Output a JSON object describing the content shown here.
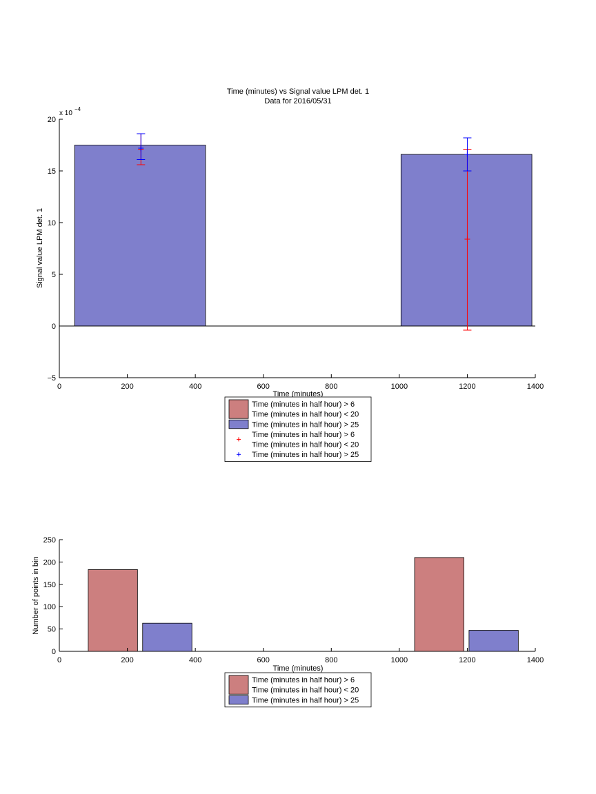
{
  "chart_data": [
    {
      "type": "bar",
      "title": "Time (minutes) vs Signal value LPM det. 1",
      "subtitle": "Data for 2016/05/31",
      "xlabel": "Time (minutes)",
      "ylabel": "Signal value LPM det. 1",
      "y_exponent_base": "x 10",
      "y_exponent_power": "−4",
      "xlim": [
        0,
        1400
      ],
      "ylim": [
        -5,
        20
      ],
      "x_ticks": [
        0,
        200,
        400,
        600,
        800,
        1000,
        1200,
        1400
      ],
      "y_ticks": [
        -5,
        0,
        5,
        10,
        15,
        20
      ],
      "y_tick_labels": [
        "−5",
        "0",
        "5",
        "10",
        "15",
        "20"
      ],
      "grid": false,
      "legend_position": "below",
      "bars": [
        {
          "series": 2,
          "x_start": 45,
          "x_end": 430,
          "value": 17.5
        },
        {
          "series": 2,
          "x_start": 1005,
          "x_end": 1390,
          "value": 16.6
        }
      ],
      "error_bars": [
        {
          "series": 1,
          "x": 240,
          "center": 17.1,
          "low": 15.6,
          "high": 18.6
        },
        {
          "series": 2,
          "x": 240,
          "center": 17.2,
          "low": 16.1,
          "high": 18.6
        },
        {
          "series": 1,
          "x": 1200,
          "center": 8.4,
          "low": -0.4,
          "high": 17.1
        },
        {
          "series": 2,
          "x": 1200,
          "center": 16.6,
          "low": 15.0,
          "high": 18.2
        }
      ],
      "legend": [
        {
          "kind": "patch",
          "series": 1,
          "lines": [
            "Time (minutes in half hour) > 6",
            "Time (minutes in half hour) < 20"
          ]
        },
        {
          "kind": "patch",
          "series": 2,
          "lines": [
            "Time (minutes in half hour) > 25"
          ]
        },
        {
          "kind": "marker",
          "series": 1,
          "lines": [
            "Time (minutes in half hour) > 6",
            "Time (minutes in half hour) < 20"
          ]
        },
        {
          "kind": "marker",
          "series": 2,
          "lines": [
            "Time (minutes in half hour) > 25"
          ]
        }
      ]
    },
    {
      "type": "bar",
      "title": "",
      "xlabel": "Time (minutes)",
      "ylabel": "Number of points in bin",
      "xlim": [
        0,
        1400
      ],
      "ylim": [
        0,
        250
      ],
      "x_ticks": [
        0,
        200,
        400,
        600,
        800,
        1000,
        1200,
        1400
      ],
      "y_ticks": [
        0,
        50,
        100,
        150,
        200,
        250
      ],
      "y_tick_labels": [
        "0",
        "50",
        "100",
        "150",
        "200",
        "250"
      ],
      "grid": false,
      "legend_position": "below",
      "bars": [
        {
          "series": 1,
          "x_start": 85,
          "x_end": 230,
          "value": 183
        },
        {
          "series": 2,
          "x_start": 245,
          "x_end": 390,
          "value": 63
        },
        {
          "series": 1,
          "x_start": 1045,
          "x_end": 1190,
          "value": 210
        },
        {
          "series": 2,
          "x_start": 1205,
          "x_end": 1350,
          "value": 47
        }
      ],
      "legend": [
        {
          "kind": "patch",
          "series": 1,
          "lines": [
            "Time (minutes in half hour) > 6",
            "Time (minutes in half hour) < 20"
          ]
        },
        {
          "kind": "patch",
          "series": 2,
          "lines": [
            "Time (minutes in half hour) > 25"
          ]
        }
      ]
    }
  ],
  "colors": {
    "series1_fill": "#cc7f7f",
    "series2_fill": "#7f7fcc",
    "series1_marker": "#ff0000",
    "series2_marker": "#0000ff",
    "axis": "#000000"
  }
}
